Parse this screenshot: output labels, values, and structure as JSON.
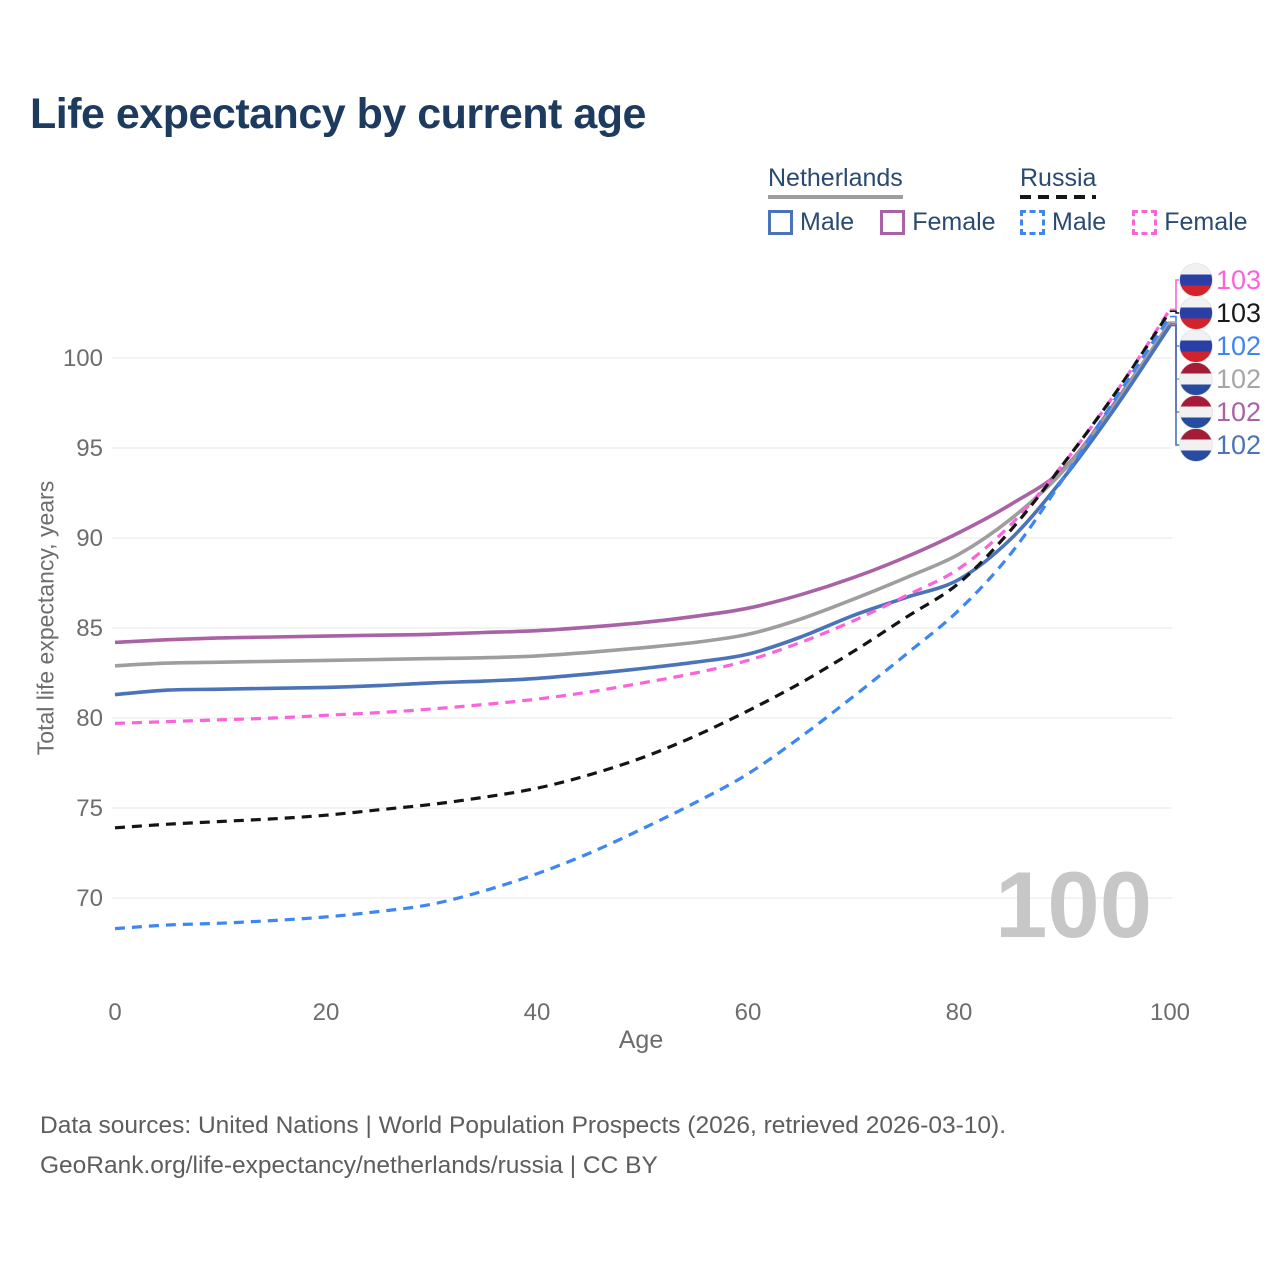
{
  "header": {
    "title": "Life expectancy by current age"
  },
  "legend": {
    "groups": [
      {
        "country": "Netherlands",
        "line_style": "solid",
        "line_color": "#9e9e9e",
        "items": [
          {
            "label": "Male",
            "color": "#4b73b8",
            "dashed": false
          },
          {
            "label": "Female",
            "color": "#a962a5",
            "dashed": false
          }
        ]
      },
      {
        "country": "Russia",
        "line_style": "dashed",
        "line_color": "#161616",
        "items": [
          {
            "label": "Male",
            "color": "#3e86f2",
            "dashed": true
          },
          {
            "label": "Female",
            "color": "#fb63da",
            "dashed": true
          }
        ]
      }
    ]
  },
  "chart_data": {
    "type": "line",
    "title": "Life expectancy by current age",
    "xlabel": "Age",
    "ylabel": "Total life expectancy, years",
    "x_ticks": [
      0,
      20,
      40,
      60,
      80,
      100
    ],
    "y_ticks": [
      70,
      75,
      80,
      85,
      90,
      95,
      100
    ],
    "xlim": [
      0,
      100
    ],
    "ylim": [
      66,
      104
    ],
    "grid": "horizontal-only",
    "legend_position": "top-right",
    "watermark": "100",
    "x": [
      0,
      5,
      10,
      15,
      20,
      25,
      30,
      35,
      40,
      45,
      50,
      55,
      60,
      65,
      70,
      75,
      80,
      85,
      90,
      95,
      100
    ],
    "series": [
      {
        "key": "nl-female",
        "name": "Netherlands Female",
        "country": "Netherlands",
        "sex": "Female",
        "color": "#a962a5",
        "dashed": false,
        "end_label": "102",
        "values": [
          84.2,
          84.35,
          84.45,
          84.5,
          84.55,
          84.6,
          84.65,
          84.75,
          84.85,
          85.05,
          85.3,
          85.65,
          86.1,
          86.85,
          87.8,
          88.95,
          90.3,
          91.9,
          93.9,
          97.7,
          101.9
        ]
      },
      {
        "key": "nl-all",
        "name": "Netherlands (both sexes)",
        "country": "Netherlands",
        "sex": "Both",
        "color": "#9e9e9e",
        "dashed": false,
        "end_label": "102",
        "values": [
          82.9,
          83.05,
          83.1,
          83.15,
          83.2,
          83.25,
          83.3,
          83.35,
          83.45,
          83.65,
          83.9,
          84.2,
          84.65,
          85.5,
          86.6,
          87.8,
          89.1,
          91.1,
          93.8,
          97.6,
          102.0
        ]
      },
      {
        "key": "nl-male",
        "name": "Netherlands Male",
        "country": "Netherlands",
        "sex": "Male",
        "color": "#4b73b8",
        "dashed": false,
        "end_label": "102",
        "values": [
          81.3,
          81.55,
          81.6,
          81.65,
          81.7,
          81.8,
          81.95,
          82.05,
          82.2,
          82.45,
          82.75,
          83.1,
          83.55,
          84.5,
          85.7,
          86.7,
          87.7,
          90.0,
          93.4,
          97.4,
          101.8
        ]
      },
      {
        "key": "ru-female",
        "name": "Russia Female",
        "country": "Russia",
        "sex": "Female",
        "color": "#fb63da",
        "dashed": true,
        "end_label": "103",
        "values": [
          79.7,
          79.8,
          79.9,
          80.0,
          80.15,
          80.3,
          80.5,
          80.75,
          81.05,
          81.45,
          81.95,
          82.5,
          83.2,
          84.2,
          85.4,
          86.8,
          88.3,
          90.8,
          94.2,
          98.2,
          102.7
        ]
      },
      {
        "key": "ru-all",
        "name": "Russia (both sexes)",
        "country": "Russia",
        "sex": "Both",
        "color": "#141414",
        "dashed": true,
        "end_label": "103",
        "values": [
          73.9,
          74.1,
          74.25,
          74.4,
          74.6,
          74.9,
          75.2,
          75.6,
          76.1,
          76.85,
          77.8,
          79.0,
          80.4,
          81.95,
          83.7,
          85.6,
          87.5,
          90.5,
          94.2,
          98.2,
          102.6
        ]
      },
      {
        "key": "ru-male",
        "name": "Russia Male",
        "country": "Russia",
        "sex": "Male",
        "color": "#3e86f2",
        "dashed": true,
        "end_label": "102",
        "values": [
          68.3,
          68.5,
          68.6,
          68.75,
          68.95,
          69.25,
          69.65,
          70.4,
          71.35,
          72.5,
          73.85,
          75.3,
          76.9,
          78.95,
          81.2,
          83.55,
          86.0,
          89.2,
          93.4,
          97.9,
          102.3
        ]
      }
    ],
    "end_labels": [
      {
        "text": "103",
        "series": "ru-female",
        "flag": "russia",
        "color": "#fb63da"
      },
      {
        "text": "103",
        "series": "ru-all",
        "flag": "russia",
        "color": "#1a1a1a"
      },
      {
        "text": "102",
        "series": "ru-male",
        "flag": "russia",
        "color": "#3e86f2"
      },
      {
        "text": "102",
        "series": "nl-all",
        "flag": "netherlands",
        "color": "#a6a6a6"
      },
      {
        "text": "102",
        "series": "nl-female",
        "flag": "netherlands",
        "color": "#a962a5"
      },
      {
        "text": "102",
        "series": "nl-male",
        "flag": "netherlands",
        "color": "#4b73b8"
      }
    ],
    "flag_colors": {
      "russia": [
        "#f1f1f1",
        "#2a3fa5",
        "#d2222b"
      ],
      "netherlands": [
        "#a51c36",
        "#f1f1f1",
        "#274b9e"
      ]
    }
  },
  "footer": {
    "line1": "Data sources: United Nations | World Population Prospects (2026, retrieved 2026-03-10).",
    "line2": "GeoRank.org/life-expectancy/netherlands/russia | CC BY"
  }
}
